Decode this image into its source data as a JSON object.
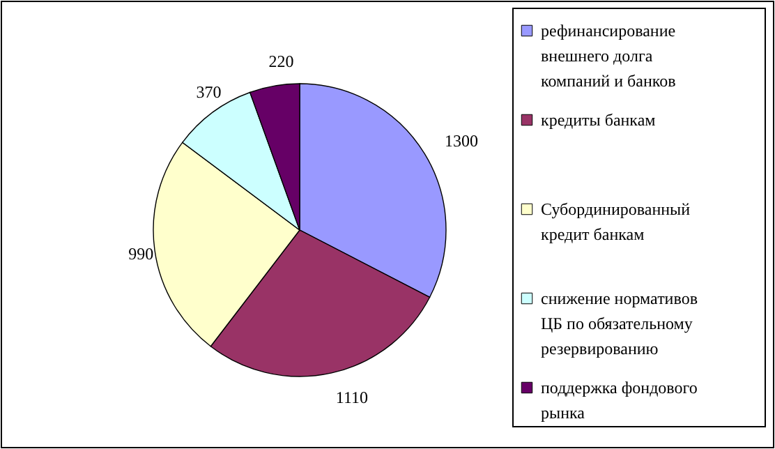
{
  "chart_data": {
    "type": "pie",
    "categories": [
      "рефинансирование внешнего долга компаний и банков",
      "кредиты банкам",
      "Субординированный кредит банкам",
      "снижение нормативов ЦБ по обязательному резервированию",
      "поддержка фондового рынка"
    ],
    "values": [
      1300,
      1110,
      990,
      370,
      220
    ],
    "colors": [
      "#9999ff",
      "#993366",
      "#ffffcc",
      "#ccffff",
      "#660066"
    ],
    "data_labels": true,
    "legend": "right"
  }
}
